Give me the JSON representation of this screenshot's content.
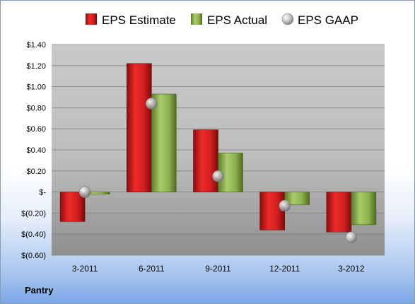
{
  "company": "Pantry",
  "legend": [
    {
      "key": "estimate",
      "label": "EPS Estimate",
      "color": "#d62828"
    },
    {
      "key": "actual",
      "label": "EPS Actual",
      "color": "#8db04f"
    },
    {
      "key": "gaap",
      "label": "EPS GAAP",
      "color": "#a8a8a8"
    }
  ],
  "chart_data": {
    "type": "bar",
    "categories": [
      "3-2011",
      "6-2011",
      "9-2011",
      "12-2011",
      "3-2012"
    ],
    "series": [
      {
        "name": "EPS Estimate",
        "type": "bar",
        "values": [
          -0.28,
          1.22,
          0.59,
          -0.36,
          -0.38
        ]
      },
      {
        "name": "EPS Actual",
        "type": "bar",
        "values": [
          -0.02,
          0.93,
          0.37,
          -0.12,
          -0.31
        ]
      },
      {
        "name": "EPS GAAP",
        "type": "scatter",
        "values": [
          0.0,
          0.84,
          0.15,
          -0.13,
          -0.43
        ]
      }
    ],
    "ylim": [
      -0.6,
      1.4
    ],
    "yticks": [
      1.4,
      1.2,
      1.0,
      0.8,
      0.6,
      0.4,
      0.2,
      0,
      -0.2,
      -0.4,
      -0.6
    ],
    "ytick_labels": [
      "$1.40",
      "$1.20",
      "$1.00",
      "$0.80",
      "$0.60",
      "$0.40",
      "$0.20",
      "$-",
      "$(0.20)",
      "$(0.40)",
      "$(0.60)"
    ],
    "legend_position": "top",
    "grid": true
  }
}
